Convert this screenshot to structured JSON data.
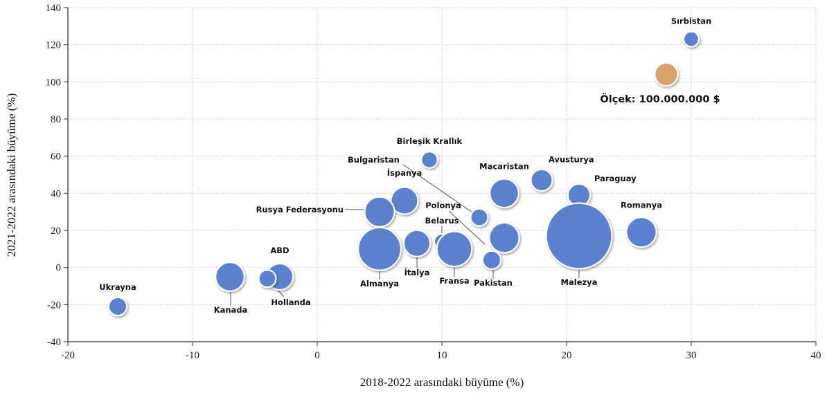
{
  "chart_data": {
    "type": "bubble",
    "xlabel": "2018-2022 arasındaki büyüme (%)",
    "ylabel": "2021-2022 arasındaki büyüme (%)",
    "xlim": [
      -20,
      40
    ],
    "ylim": [
      -40,
      140
    ],
    "xticks": [
      -20,
      -10,
      0,
      10,
      20,
      30,
      40
    ],
    "yticks": [
      -40,
      -20,
      0,
      20,
      40,
      60,
      80,
      100,
      120,
      140
    ],
    "grid": true,
    "colors": {
      "bubble": "#5b82cf",
      "scale_bubble": "#d6a36a",
      "leader": "#555555"
    },
    "points": [
      {
        "name": "Sırbistan",
        "x": 30,
        "y": 123,
        "size": 7
      },
      {
        "name": "Birleşik Krallık",
        "x": 9,
        "y": 58,
        "size": 8
      },
      {
        "name": "Bulgaristan",
        "x": 13,
        "y": 27,
        "size": 9
      },
      {
        "name": "İspanya",
        "x": 7,
        "y": 36,
        "size": 22
      },
      {
        "name": "Rusya Federasyonu",
        "x": 5,
        "y": 30,
        "size": 27
      },
      {
        "name": "Macaristan",
        "x": 15,
        "y": 40,
        "size": 25
      },
      {
        "name": "Avusturya",
        "x": 18,
        "y": 47,
        "size": 14
      },
      {
        "name": "Paraguay",
        "x": 21,
        "y": 39,
        "size": 15
      },
      {
        "name": "Romanya",
        "x": 26,
        "y": 19,
        "size": 27
      },
      {
        "name": "Polonya",
        "x": 15,
        "y": 16,
        "size": 27
      },
      {
        "name": "Belarus",
        "x": 10,
        "y": 14,
        "size": 7
      },
      {
        "name": "Almanya",
        "x": 5,
        "y": 10,
        "size": 55
      },
      {
        "name": "İtalya",
        "x": 8,
        "y": 13,
        "size": 21
      },
      {
        "name": "Fransa",
        "x": 11,
        "y": 10,
        "size": 37
      },
      {
        "name": "Pakistan",
        "x": 14,
        "y": 4,
        "size": 10
      },
      {
        "name": "Malezya",
        "x": 21,
        "y": 17,
        "size": 130
      },
      {
        "name": "ABD",
        "x": -3,
        "y": -5,
        "size": 21
      },
      {
        "name": "Kanada",
        "x": -7,
        "y": -5,
        "size": 25
      },
      {
        "name": "Hollanda",
        "x": -4,
        "y": -6,
        "size": 9
      },
      {
        "name": "Ukrayna",
        "x": -16,
        "y": -21,
        "size": 10
      }
    ],
    "scale": {
      "label": "Ölçek: 100.000.000 $",
      "x": 28,
      "y": 104,
      "size": 16
    }
  }
}
